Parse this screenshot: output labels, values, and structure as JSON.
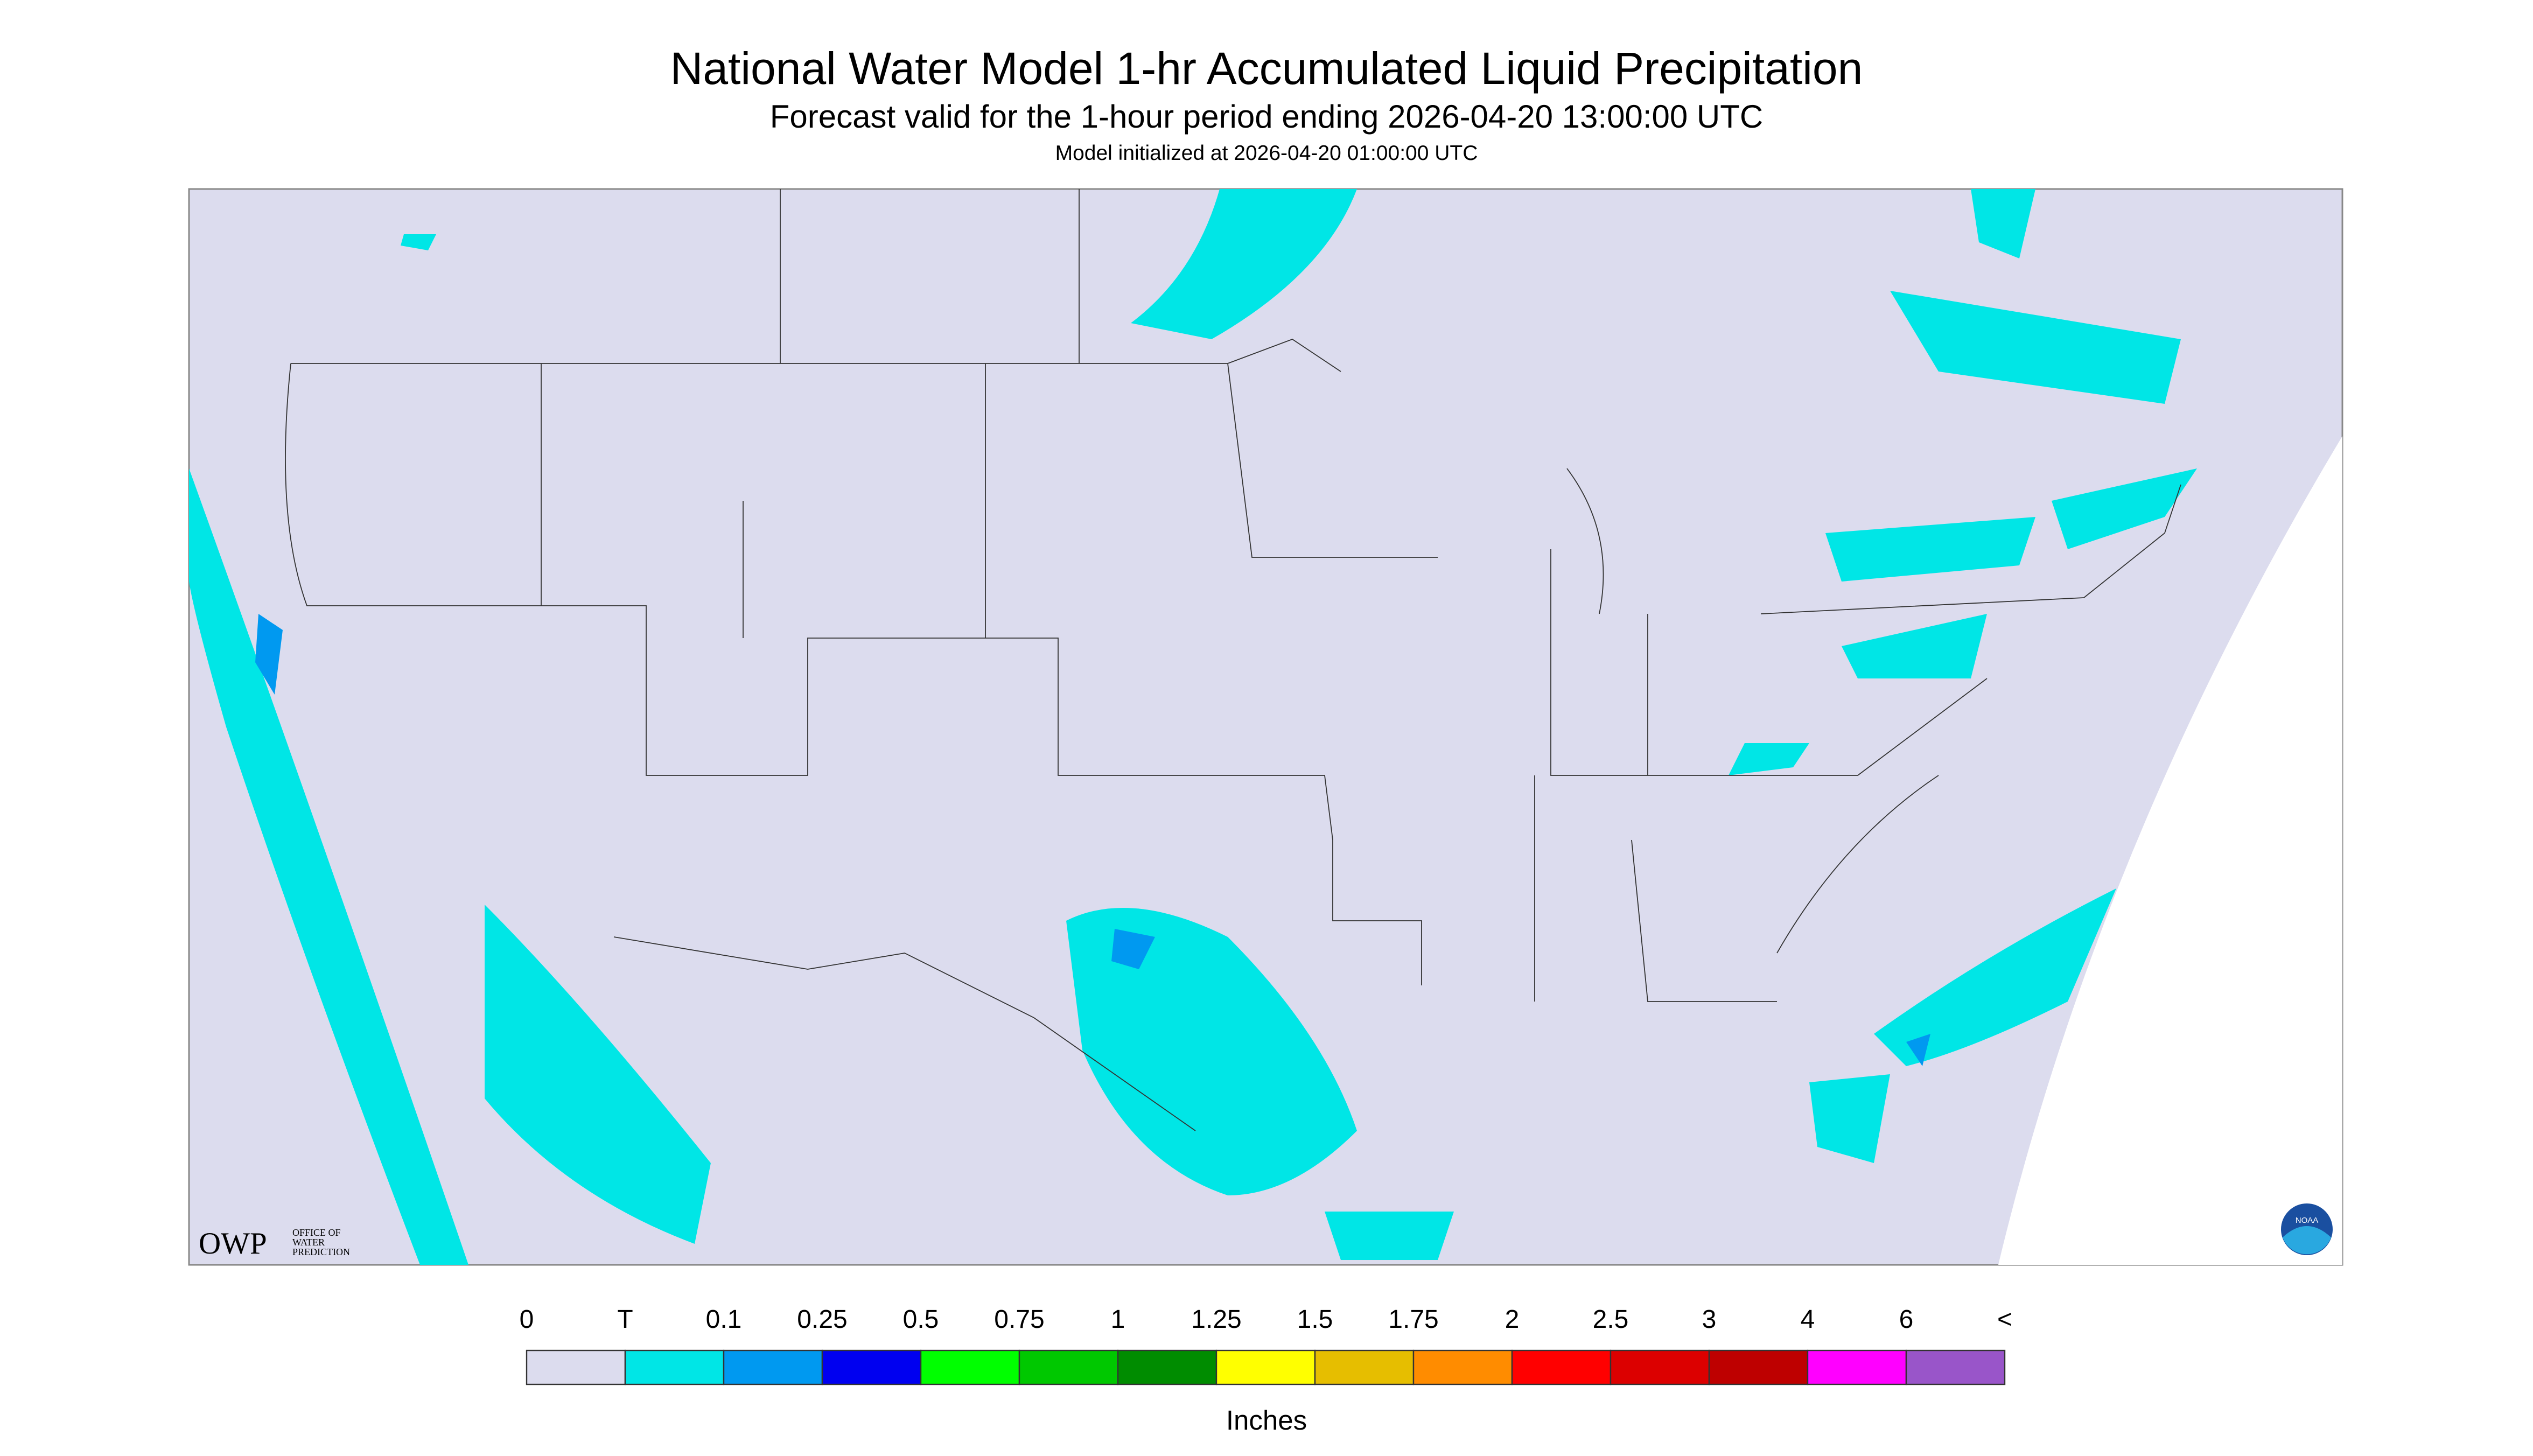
{
  "header": {
    "title": "National Water Model 1-hr Accumulated Liquid Precipitation",
    "subtitle": "Forecast valid for the 1-hour period ending 2026-04-20 13:00:00 UTC",
    "note": "Model initialized at 2026-04-20 01:00:00 UTC"
  },
  "logos": {
    "owp": "OWP",
    "owp_name": [
      "OFFICE OF",
      "WATER",
      "PREDICTION"
    ],
    "noaa": "NOAA"
  },
  "legend": {
    "labels": [
      "0",
      "T",
      "0.1",
      "0.25",
      "0.5",
      "0.75",
      "1",
      "1.25",
      "1.5",
      "1.75",
      "2",
      "2.5",
      "3",
      "4",
      "6",
      "<"
    ],
    "colors": [
      "#dcdcee",
      "#00e6e6",
      "#0099f0",
      "#0000f0",
      "#00ff00",
      "#00c800",
      "#008c00",
      "#ffff00",
      "#e6be00",
      "#ff8c00",
      "#ff0000",
      "#dc0000",
      "#be0000",
      "#ff00ff",
      "#9955c9"
    ],
    "unit": "Inches"
  }
}
